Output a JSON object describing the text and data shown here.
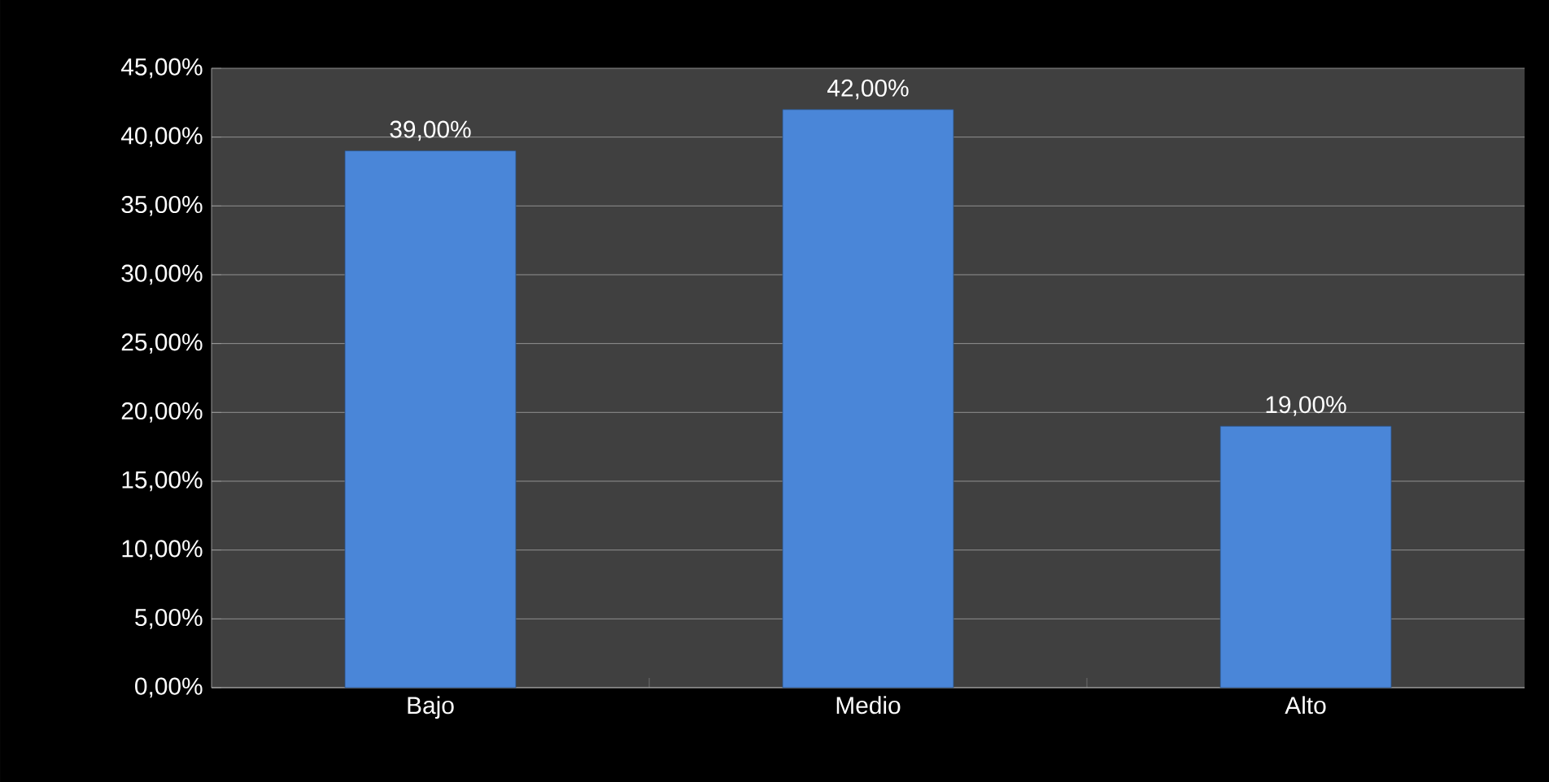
{
  "chart_data": {
    "type": "bar",
    "categories": [
      "Bajo",
      "Medio",
      "Alto"
    ],
    "values": [
      39,
      42,
      19
    ],
    "color": "#4a86d8",
    "value_labels": [
      "39,00%",
      "42,00%",
      "19,00%"
    ],
    "ylim": [
      0,
      45
    ],
    "yticks": [
      {
        "value": 0,
        "label": "0,00%"
      },
      {
        "value": 5,
        "label": "5,00%"
      },
      {
        "value": 10,
        "label": "10,00%"
      },
      {
        "value": 15,
        "label": "15,00%"
      },
      {
        "value": 20,
        "label": "20,00%"
      },
      {
        "value": 25,
        "label": "25,00%"
      },
      {
        "value": 30,
        "label": "30,00%"
      },
      {
        "value": 35,
        "label": "35,00%"
      },
      {
        "value": 40,
        "label": "40,00%"
      },
      {
        "value": 45,
        "label": "45,00%"
      }
    ],
    "grid": "y"
  }
}
